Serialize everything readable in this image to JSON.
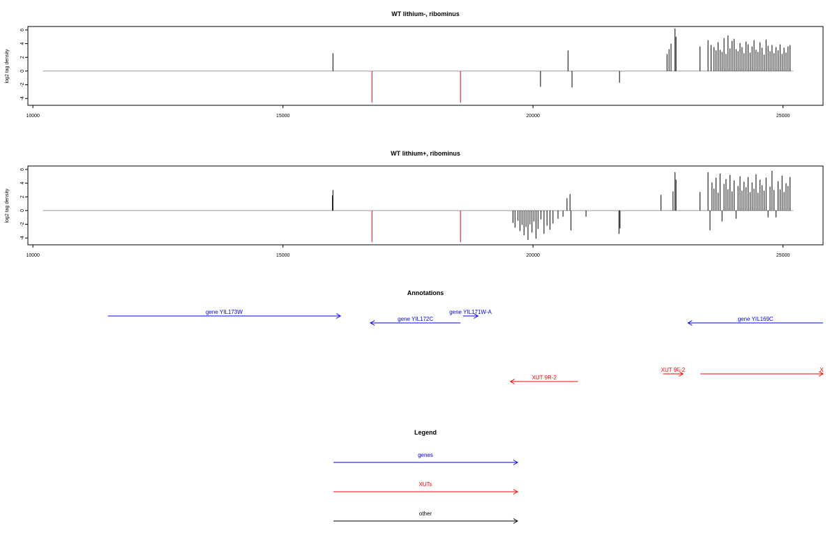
{
  "chart_data": [
    {
      "type": "bar",
      "title": "WT lithium-, ribominus",
      "ylabel": "log2 tag density",
      "xlabel": "",
      "xlim": [
        9900,
        25800
      ],
      "ylim": [
        -5,
        6.5
      ],
      "xticks": [
        10000,
        15000,
        20000,
        25000
      ],
      "yticks": [
        -4,
        -2,
        0,
        2,
        4,
        6
      ],
      "baseline_range": [
        10200,
        25200
      ],
      "series": [
        {
          "color": "#000000",
          "values": [
            [
              16000,
              2.6
            ],
            [
              20150,
              -2.3
            ],
            [
              20700,
              3.0
            ],
            [
              20780,
              -2.4
            ],
            [
              21730,
              -1.7
            ],
            [
              22680,
              2.5
            ],
            [
              22720,
              3.2
            ],
            [
              22760,
              4.0
            ],
            [
              22840,
              6.2
            ],
            [
              22860,
              5.0
            ],
            [
              23340,
              3.6
            ],
            [
              23500,
              4.5
            ],
            [
              23560,
              3.8
            ],
            [
              23620,
              3.5
            ],
            [
              23660,
              3.0
            ],
            [
              23700,
              4.2
            ],
            [
              23740,
              3.1
            ],
            [
              23780,
              2.8
            ],
            [
              23820,
              4.8
            ],
            [
              23860,
              2.5
            ],
            [
              23900,
              5.2
            ],
            [
              23940,
              3.3
            ],
            [
              23980,
              4.4
            ],
            [
              24020,
              4.7
            ],
            [
              24060,
              3.2
            ],
            [
              24100,
              2.9
            ],
            [
              24140,
              4.1
            ],
            [
              24180,
              3.5
            ],
            [
              24220,
              2.6
            ],
            [
              24260,
              4.3
            ],
            [
              24300,
              3.9
            ],
            [
              24340,
              2.7
            ],
            [
              24380,
              3.6
            ],
            [
              24420,
              4.5
            ],
            [
              24460,
              3.1
            ],
            [
              24500,
              2.8
            ],
            [
              24540,
              4.2
            ],
            [
              24580,
              3.4
            ],
            [
              24620,
              2.4
            ],
            [
              24660,
              4.6
            ],
            [
              24700,
              3.7
            ],
            [
              24740,
              2.9
            ],
            [
              24780,
              3.8
            ],
            [
              24820,
              2.6
            ],
            [
              24860,
              3.5
            ],
            [
              24900,
              3.0
            ],
            [
              24940,
              3.9
            ],
            [
              24980,
              2.5
            ],
            [
              25020,
              3.4
            ],
            [
              25060,
              2.7
            ],
            [
              25100,
              3.6
            ],
            [
              25140,
              3.8
            ]
          ]
        },
        {
          "color": "#ff0000",
          "values": [
            [
              16780,
              -4.6
            ],
            [
              18550,
              -4.6
            ]
          ]
        }
      ]
    },
    {
      "type": "bar",
      "title": "WT lithium+, ribominus",
      "ylabel": "log2 tag density",
      "xlabel": "",
      "xlim": [
        9900,
        25800
      ],
      "ylim": [
        -5,
        6.5
      ],
      "xticks": [
        10000,
        15000,
        20000,
        25000
      ],
      "yticks": [
        -4,
        -2,
        0,
        2,
        4,
        6
      ],
      "baseline_range": [
        10200,
        25200
      ],
      "series": [
        {
          "color": "#000000",
          "values": [
            [
              15990,
              2.2
            ],
            [
              16000,
              3.0
            ],
            [
              19600,
              -1.8
            ],
            [
              19640,
              -2.5
            ],
            [
              19700,
              -1.5
            ],
            [
              19740,
              -3.0
            ],
            [
              19780,
              -2.1
            ],
            [
              19820,
              -3.6
            ],
            [
              19860,
              -2.4
            ],
            [
              19900,
              -4.3
            ],
            [
              19940,
              -2.0
            ],
            [
              19980,
              -3.2
            ],
            [
              20020,
              -1.6
            ],
            [
              20060,
              -4.1
            ],
            [
              20100,
              -2.7
            ],
            [
              20160,
              -1.3
            ],
            [
              20220,
              -3.4
            ],
            [
              20280,
              -2.2
            ],
            [
              20340,
              -2.8
            ],
            [
              20400,
              -1.9
            ],
            [
              20500,
              -1.2
            ],
            [
              20600,
              -0.9
            ],
            [
              20680,
              1.8
            ],
            [
              20740,
              2.4
            ],
            [
              20760,
              -2.9
            ],
            [
              21060,
              -0.9
            ],
            [
              21720,
              -3.4
            ],
            [
              21740,
              -2.6
            ],
            [
              22560,
              2.3
            ],
            [
              22800,
              2.8
            ],
            [
              22840,
              5.6
            ],
            [
              22860,
              4.5
            ],
            [
              23340,
              2.7
            ],
            [
              23500,
              5.6
            ],
            [
              23540,
              -2.9
            ],
            [
              23580,
              4.1
            ],
            [
              23620,
              3.2
            ],
            [
              23660,
              4.8
            ],
            [
              23700,
              2.6
            ],
            [
              23740,
              5.4
            ],
            [
              23780,
              -1.6
            ],
            [
              23820,
              3.9
            ],
            [
              23860,
              4.6
            ],
            [
              23900,
              3.1
            ],
            [
              23940,
              5.2
            ],
            [
              23980,
              2.8
            ],
            [
              24020,
              4.4
            ],
            [
              24060,
              -1.2
            ],
            [
              24100,
              3.6
            ],
            [
              24140,
              5.0
            ],
            [
              24180,
              2.9
            ],
            [
              24220,
              4.2
            ],
            [
              24260,
              3.4
            ],
            [
              24300,
              4.9
            ],
            [
              24340,
              2.7
            ],
            [
              24380,
              4.1
            ],
            [
              24420,
              3.2
            ],
            [
              24460,
              5.3
            ],
            [
              24500,
              2.6
            ],
            [
              24540,
              4.5
            ],
            [
              24580,
              3.7
            ],
            [
              24620,
              2.9
            ],
            [
              24660,
              4.8
            ],
            [
              24700,
              -1.0
            ],
            [
              24740,
              3.5
            ],
            [
              24780,
              5.8
            ],
            [
              24820,
              3.0
            ],
            [
              24860,
              -1.0
            ],
            [
              24900,
              4.3
            ],
            [
              24940,
              3.1
            ],
            [
              24980,
              5.1
            ],
            [
              25020,
              2.7
            ],
            [
              25060,
              4.0
            ],
            [
              25100,
              3.6
            ],
            [
              25140,
              4.9
            ]
          ]
        },
        {
          "color": "#ff0000",
          "values": [
            [
              16780,
              -4.6
            ],
            [
              18550,
              -4.6
            ]
          ]
        }
      ]
    }
  ],
  "annotations": {
    "title": "Annotations",
    "items": [
      {
        "label": "gene YIL173W",
        "start": 11500,
        "end": 16150,
        "track": 1,
        "color": "#0000ff",
        "direction": "right"
      },
      {
        "label": "gene YIL172C",
        "start": 16750,
        "end": 18550,
        "track": 2,
        "color": "#0000ff",
        "direction": "left"
      },
      {
        "label": "gene YIL171W-A",
        "start": 18600,
        "end": 18900,
        "track": 1,
        "color": "#0000ff",
        "direction": "right"
      },
      {
        "label": "gene YIL169C",
        "start": 23100,
        "end": 25800,
        "track": 2,
        "color": "#0000ff",
        "direction": "left"
      },
      {
        "label": "XUT 9R-2",
        "start": 19550,
        "end": 20900,
        "track": 4,
        "color": "#ff0000",
        "direction": "left"
      },
      {
        "label": "XUT 9F-2",
        "start": 22600,
        "end": 23000,
        "track": 3,
        "color": "#ff0000",
        "direction": "right"
      },
      {
        "label": "X",
        "start": 23350,
        "end": 25800,
        "track": 3,
        "color": "#ff0000",
        "direction": "right"
      }
    ]
  },
  "legend": {
    "title": "Legend",
    "items": [
      {
        "label": "genes",
        "color": "#0000ff"
      },
      {
        "label": "XUTs",
        "color": "#ff0000"
      },
      {
        "label": "other",
        "color": "#000000"
      }
    ]
  }
}
